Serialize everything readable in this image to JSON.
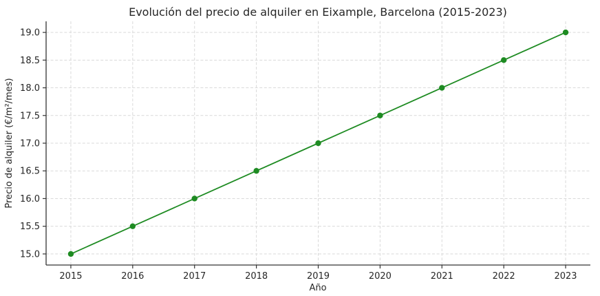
{
  "chart_data": {
    "type": "line",
    "title": "Evolución del precio de alquiler en Eixample, Barcelona (2015-2023)",
    "xlabel": "Año",
    "ylabel": "Precio de alquiler (€/m²/mes)",
    "x": [
      2015,
      2016,
      2017,
      2018,
      2019,
      2020,
      2021,
      2022,
      2023
    ],
    "values": [
      15.0,
      15.5,
      16.0,
      16.5,
      17.0,
      17.5,
      18.0,
      18.5,
      19.0
    ],
    "series_name": "Precio de alquiler",
    "xtick_labels": [
      "2015",
      "2016",
      "2017",
      "2018",
      "2019",
      "2020",
      "2021",
      "2022",
      "2023"
    ],
    "yticks": [
      15.0,
      15.5,
      16.0,
      16.5,
      17.0,
      17.5,
      18.0,
      18.5,
      19.0
    ],
    "ytick_labels": [
      "15.0",
      "15.5",
      "16.0",
      "16.5",
      "17.0",
      "17.5",
      "18.0",
      "18.5",
      "19.0"
    ],
    "xlim": [
      2014.6,
      2023.4
    ],
    "ylim": [
      14.8,
      19.2
    ],
    "grid": true,
    "grid_style": "dashed",
    "legend": false,
    "colors": {
      "line": "#1e8b22",
      "marker": "#1e8b22",
      "grid": "#d9d9d9",
      "spine": "#333333",
      "text": "#262626",
      "background": "#ffffff"
    }
  }
}
